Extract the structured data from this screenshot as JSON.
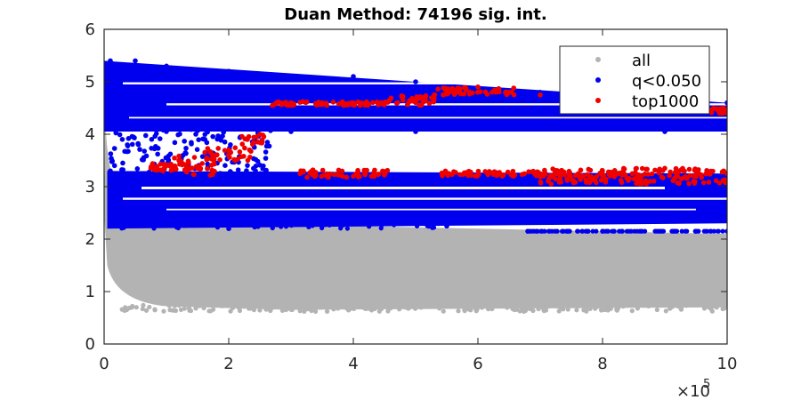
{
  "chart_data": {
    "type": "scatter",
    "title": "Duan Method: 74196 sig. int.",
    "xlabel": "",
    "ylabel": "",
    "xlim": [
      0,
      10
    ],
    "ylim": [
      0,
      6
    ],
    "x_ticks": [
      "0",
      "2",
      "4",
      "6",
      "8",
      "10"
    ],
    "y_ticks": [
      "0",
      "1",
      "2",
      "3",
      "4",
      "5",
      "6"
    ],
    "x_exponent_base": "×10",
    "x_exponent_power": "5",
    "grid": false,
    "legend_position": "top-right",
    "series": [
      {
        "name": "all",
        "color": "#b3b3b3",
        "points": [
          [
            0.02,
            4.2
          ],
          [
            0.05,
            3.6
          ],
          [
            0.1,
            3.0
          ],
          [
            0.2,
            2.6
          ],
          [
            0.5,
            2.3
          ],
          [
            1,
            2.3
          ],
          [
            2,
            2.25
          ],
          [
            4,
            2.2
          ],
          [
            6,
            2.15
          ],
          [
            8,
            2.1
          ],
          [
            10,
            2.1
          ],
          [
            0.05,
            1.5
          ],
          [
            0.2,
            1.0
          ],
          [
            0.5,
            0.8
          ],
          [
            1,
            0.75
          ],
          [
            2,
            0.7
          ],
          [
            3,
            0.65
          ],
          [
            5,
            0.65
          ],
          [
            7,
            0.7
          ],
          [
            9,
            0.65
          ],
          [
            10,
            0.7
          ]
        ]
      },
      {
        "name": "q<0.050",
        "color": "#0000ee",
        "points": [
          [
            0.1,
            5.4
          ],
          [
            0.5,
            5.4
          ],
          [
            1,
            5.3
          ],
          [
            2,
            5.2
          ],
          [
            3,
            5.1
          ],
          [
            4,
            5.1
          ],
          [
            5,
            5.0
          ],
          [
            6,
            4.9
          ],
          [
            7,
            4.8
          ],
          [
            8,
            4.7
          ],
          [
            9,
            4.6
          ],
          [
            10,
            4.6
          ],
          [
            0.05,
            4.1
          ],
          [
            1,
            4.05
          ],
          [
            3,
            4.05
          ],
          [
            5,
            4.05
          ],
          [
            7,
            4.1
          ],
          [
            9,
            4.05
          ],
          [
            10,
            4.1
          ],
          [
            0.1,
            3.3
          ],
          [
            1,
            3.25
          ],
          [
            3,
            3.2
          ],
          [
            5,
            3.2
          ],
          [
            7,
            3.2
          ],
          [
            10,
            3.2
          ],
          [
            0.5,
            2.4
          ],
          [
            2,
            2.2
          ],
          [
            4,
            2.3
          ],
          [
            5.5,
            2.25
          ],
          [
            6.8,
            2.15
          ],
          [
            8,
            2.15
          ],
          [
            10,
            2.15
          ]
        ]
      },
      {
        "name": "top1000",
        "color": "#ee0000",
        "points": [
          [
            0.75,
            3.35
          ],
          [
            1,
            3.4
          ],
          [
            1.2,
            3.5
          ],
          [
            1.5,
            3.35
          ],
          [
            1.8,
            3.6
          ],
          [
            2,
            3.7
          ],
          [
            2.3,
            3.9
          ],
          [
            2.5,
            4.0
          ],
          [
            2.7,
            4.55
          ],
          [
            3,
            4.6
          ],
          [
            3.5,
            4.6
          ],
          [
            4,
            4.6
          ],
          [
            4.5,
            4.6
          ],
          [
            5,
            4.65
          ],
          [
            5.3,
            4.75
          ],
          [
            5.7,
            4.85
          ],
          [
            6,
            4.9
          ],
          [
            6.5,
            4.8
          ],
          [
            7,
            4.75
          ],
          [
            10,
            4.45
          ],
          [
            3.2,
            3.3
          ],
          [
            4,
            3.2
          ],
          [
            5.5,
            3.25
          ],
          [
            7,
            3.25
          ],
          [
            8,
            3.3
          ],
          [
            9,
            3.35
          ],
          [
            10,
            3.25
          ]
        ]
      }
    ]
  }
}
